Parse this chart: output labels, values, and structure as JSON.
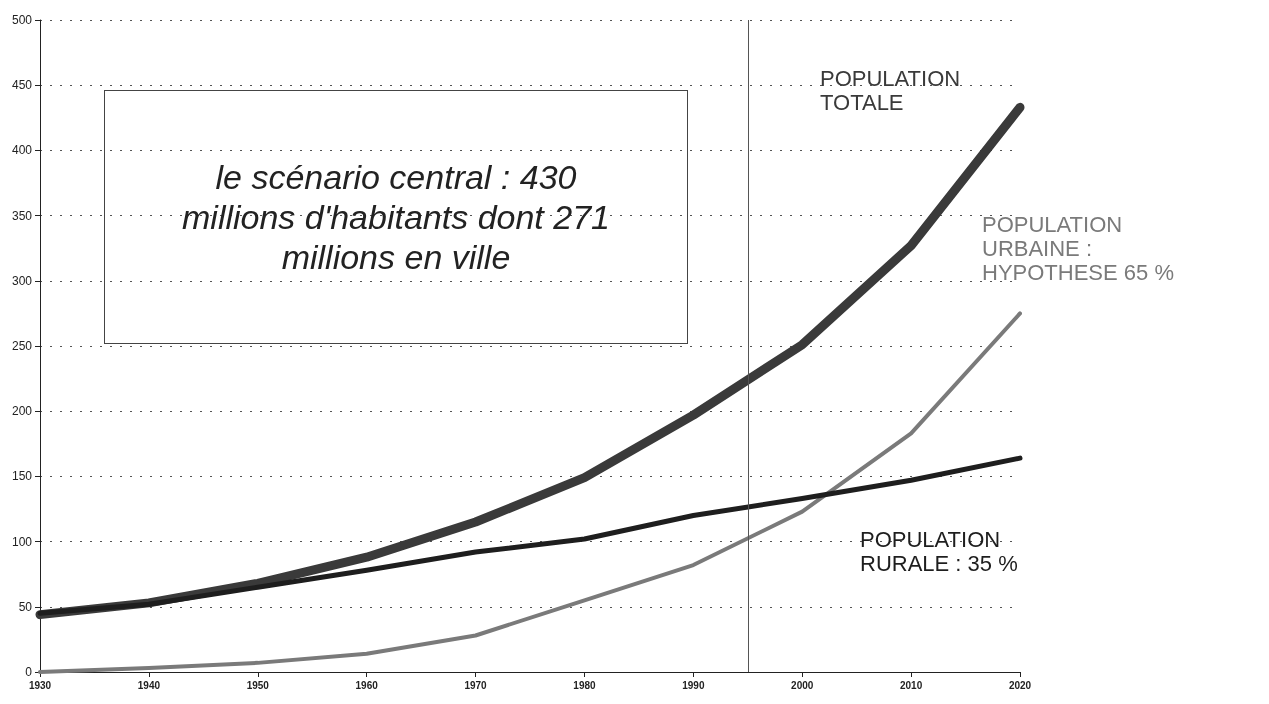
{
  "chart_data": {
    "type": "line",
    "x": [
      1930,
      1940,
      1950,
      1960,
      1970,
      1980,
      1990,
      2000,
      2010,
      2020
    ],
    "series": [
      {
        "name": "POPULATION TOTALE",
        "color": "#3a3a3a",
        "values": [
          44,
          53,
          68,
          88,
          115,
          149,
          197,
          251,
          327,
          433
        ]
      },
      {
        "name": "POPULATION URBAINE : HYPOTHESE 65 %",
        "color": "#7a7a7a",
        "values": [
          0,
          3,
          7,
          14,
          28,
          55,
          82,
          123,
          183,
          275
        ]
      },
      {
        "name": "POPULATION RURALE : 35 %",
        "color": "#1e1e1e",
        "values": [
          45,
          52,
          65,
          78,
          92,
          102,
          120,
          133,
          147,
          164
        ]
      }
    ],
    "xlim": [
      1930,
      2020
    ],
    "xticks": [
      1930,
      1940,
      1950,
      1960,
      1970,
      1980,
      1990,
      2000,
      2010,
      2020
    ],
    "ylim": [
      0,
      500
    ],
    "yticks": [
      0,
      50,
      100,
      150,
      200,
      250,
      300,
      350,
      400,
      450,
      500
    ],
    "grid": "y",
    "legend": false,
    "marker": "none",
    "line_style": "solid",
    "ref_lines": [
      {
        "axis": "x",
        "value": 1995,
        "color": "#555555"
      }
    ],
    "annotations": [
      "le scénario central : 430 millions d'habitants dont 271 millions en ville"
    ]
  }
}
